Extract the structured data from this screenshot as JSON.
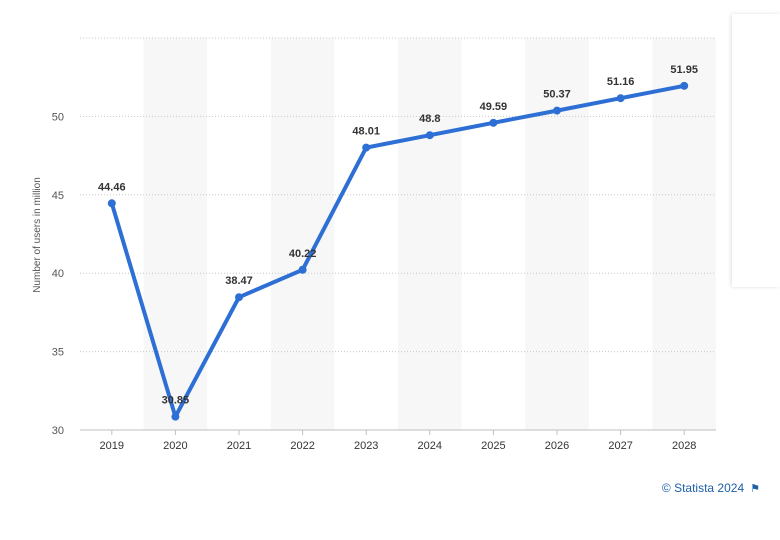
{
  "chart_data": {
    "type": "line",
    "categories": [
      "2019",
      "2020",
      "2021",
      "2022",
      "2023",
      "2024",
      "2025",
      "2026",
      "2027",
      "2028"
    ],
    "series": [
      {
        "values": [
          44.46,
          30.85,
          38.47,
          40.22,
          48.01,
          48.8,
          49.59,
          50.37,
          51.16,
          51.95
        ]
      }
    ],
    "data_labels": [
      "44.46",
      "30.85",
      "38.47",
      "40.22",
      "48.01",
      "48.8",
      "49.59",
      "50.37",
      "51.16",
      "51.95"
    ],
    "ylabel": "Number of users in million",
    "ylim": [
      30,
      55
    ],
    "yticks": [
      "30",
      "35",
      "40",
      "45",
      "50"
    ],
    "grid": true,
    "alternating_column_bands": true,
    "line_color": "#2d6fd4",
    "band_color": "#f7f7f7"
  },
  "footer": {
    "credit": "© Statista 2024",
    "flag_icon": "flag-icon"
  }
}
